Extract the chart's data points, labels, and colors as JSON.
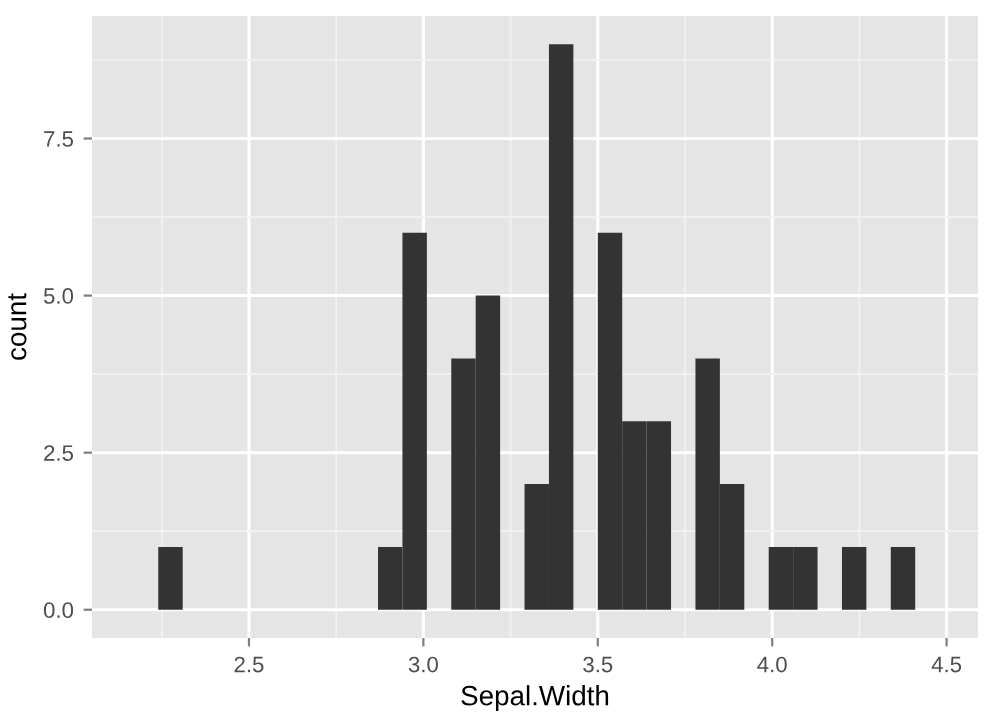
{
  "chart_data": {
    "type": "histogram",
    "xlabel": "Sepal.Width",
    "ylabel": "count",
    "color": "#333333",
    "bins": [
      2.24,
      2.31,
      2.38,
      2.45,
      2.52,
      2.59,
      2.66,
      2.73,
      2.8,
      2.87,
      2.94,
      3.01,
      3.08,
      3.15,
      3.22,
      3.29,
      3.36,
      3.43,
      3.5,
      3.57,
      3.64,
      3.71,
      3.78,
      3.85,
      3.92,
      3.99,
      4.06,
      4.13,
      4.2,
      4.27,
      4.34,
      4.41,
      4.48
    ],
    "values": [
      1,
      0,
      0,
      0,
      0,
      0,
      0,
      0,
      0,
      1,
      6,
      0,
      4,
      5,
      0,
      2,
      9,
      0,
      6,
      3,
      3,
      0,
      4,
      2,
      0,
      1,
      1,
      0,
      1,
      0,
      1,
      0
    ],
    "xlim": [
      2.05,
      4.59
    ],
    "ylim": [
      -0.45,
      9.45
    ],
    "xticks": [
      2.5,
      {
        "value": 3,
        "label": "3.0"
      },
      3.5,
      {
        "value": 4,
        "label": "4.0"
      },
      4.5
    ],
    "yticks": [
      {
        "value": 0,
        "label": "0.0"
      },
      2.5,
      {
        "value": 5,
        "label": "5.0"
      },
      7.5
    ],
    "grid": true
  }
}
